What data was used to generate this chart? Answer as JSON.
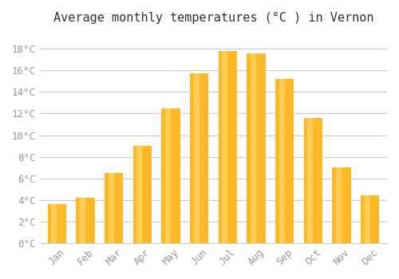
{
  "title": "Average monthly temperatures (°C ) in Vernon",
  "months": [
    "Jan",
    "Feb",
    "Mar",
    "Apr",
    "May",
    "Jun",
    "Jul",
    "Aug",
    "Sep",
    "Oct",
    "Nov",
    "Dec"
  ],
  "values": [
    3.6,
    4.2,
    6.5,
    9.0,
    12.5,
    15.7,
    17.8,
    17.6,
    15.2,
    11.6,
    7.0,
    4.4
  ],
  "bar_color_main": "#FDB827",
  "bar_color_light": "#FFCC55",
  "background_color": "#FFFFFF",
  "grid_color": "#CCCCCC",
  "yticks": [
    0,
    2,
    4,
    6,
    8,
    10,
    12,
    14,
    16,
    18
  ],
  "ylim": [
    0,
    19.5
  ],
  "tick_label_color": "#999999",
  "title_color": "#333333",
  "title_fontsize": 11,
  "tick_fontsize": 9,
  "font_family": "monospace"
}
